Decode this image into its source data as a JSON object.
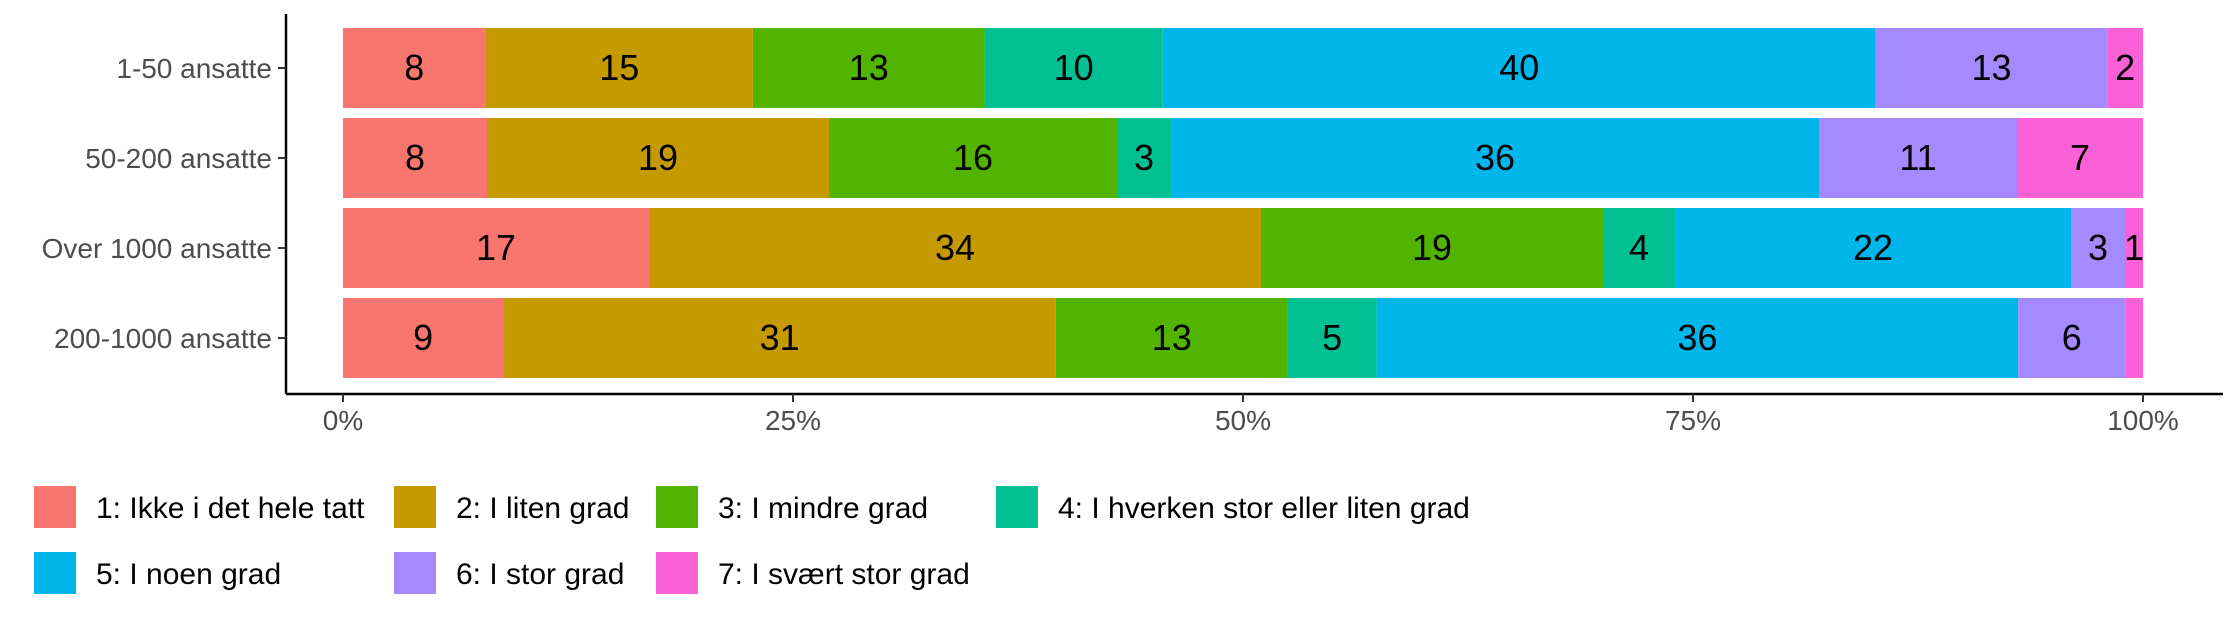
{
  "chart_data": {
    "type": "bar",
    "orientation": "horizontal",
    "stacked": "percent",
    "categories": [
      "1-50 ansatte",
      "50-200 ansatte",
      "Over 1000 ansatte",
      "200-1000 ansatte"
    ],
    "series": [
      {
        "name": "1: Ikke i det hele tatt",
        "color": "#F8766D",
        "values": [
          8,
          8,
          17,
          9
        ]
      },
      {
        "name": "2: I liten grad",
        "color": "#C49A00",
        "values": [
          15,
          19,
          34,
          31
        ]
      },
      {
        "name": "3: I mindre grad",
        "color": "#53B400",
        "values": [
          13,
          16,
          19,
          13
        ]
      },
      {
        "name": "4: I hverken stor eller liten grad",
        "color": "#00C094",
        "values": [
          10,
          3,
          4,
          5
        ]
      },
      {
        "name": "5: I noen grad",
        "color": "#00B6EB",
        "values": [
          40,
          36,
          22,
          36
        ]
      },
      {
        "name": "6: I stor grad",
        "color": "#A58AFF",
        "values": [
          13,
          11,
          3,
          6
        ]
      },
      {
        "name": "7: I svært stor grad",
        "color": "#FB61D7",
        "values": [
          2,
          7,
          1,
          1
        ]
      }
    ],
    "data_labels": [
      [
        "8",
        "15",
        "13",
        "10",
        "40",
        "13",
        "2"
      ],
      [
        "8",
        "19",
        "16",
        "3",
        "36",
        "11",
        "7"
      ],
      [
        "17",
        "34",
        "19",
        "4",
        "22",
        "3",
        "1"
      ],
      [
        "9",
        "31",
        "13",
        "5",
        "36",
        "6",
        ""
      ]
    ],
    "xticks": [
      "0%",
      "25%",
      "50%",
      "75%",
      "100%"
    ],
    "xlim": [
      0,
      1
    ],
    "legend_position": "bottom"
  }
}
